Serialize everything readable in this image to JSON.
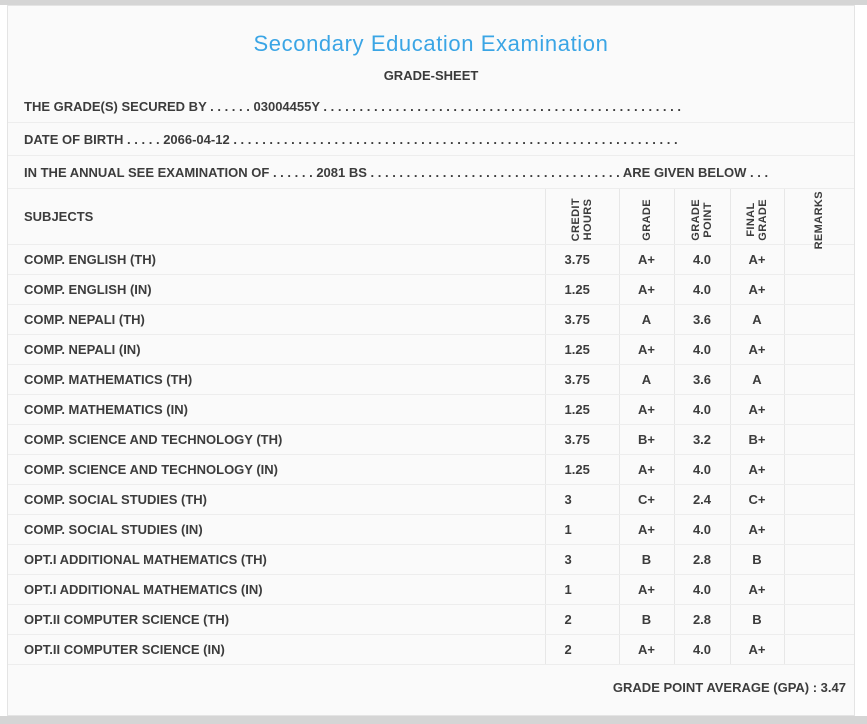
{
  "colors": {
    "title_blue": "#3aa5e5",
    "text": "#3c3c3c",
    "sheet_background": "#fafafa",
    "border_gray": "#e4e4e4"
  },
  "header": {
    "title": "Secondary Education Examination",
    "subtitle": "GRADE-SHEET"
  },
  "info_lines": [
    {
      "label": "THE GRADE(S) SECURED BY",
      "dots1": ". . . . . .",
      "value": "03004455Y",
      "dots2": ". . . . . . . . . . . . . . . . . . . . . . . . . . . . . . . . . . . . . . . . . . . . . . . . . .",
      "suffix": "",
      "dots3": ""
    },
    {
      "label": "DATE OF BIRTH",
      "dots1": ". . . . .",
      "value": "2066-04-12",
      "dots2": ". . . . . . . . . . . . . . . . . . . . . . . . . . . . . . . . . . . . . . . . . . . . . . . . . . . . . . . . . . . . . .",
      "suffix": "",
      "dots3": ""
    },
    {
      "label": "IN THE ANNUAL SEE EXAMINATION OF",
      "dots1": ". . . . . .",
      "value": "2081 BS",
      "dots2": ". . . . . . . . . . . . . . . . . . . . . . . . . . . . . . . . . . .",
      "suffix": "ARE GIVEN BELOW",
      "dots3": ". . ."
    }
  ],
  "table": {
    "headers": {
      "subjects": "SUBJECTS",
      "credit_hours": "CREDIT\nHOURS",
      "grade": "GRADE",
      "grade_point": "GRADE\nPOINT",
      "final_grade": "FINAL\nGRADE",
      "remarks": "REMARKS"
    },
    "rows": [
      {
        "subject": "COMP. ENGLISH (TH)",
        "credit": "3.75",
        "grade": "A+",
        "point": "4.0",
        "final": "A+",
        "remarks": ""
      },
      {
        "subject": "COMP. ENGLISH (IN)",
        "credit": "1.25",
        "grade": "A+",
        "point": "4.0",
        "final": "A+",
        "remarks": ""
      },
      {
        "subject": "COMP. NEPALI (TH)",
        "credit": "3.75",
        "grade": "A",
        "point": "3.6",
        "final": "A",
        "remarks": ""
      },
      {
        "subject": "COMP. NEPALI (IN)",
        "credit": "1.25",
        "grade": "A+",
        "point": "4.0",
        "final": "A+",
        "remarks": ""
      },
      {
        "subject": "COMP. MATHEMATICS (TH)",
        "credit": "3.75",
        "grade": "A",
        "point": "3.6",
        "final": "A",
        "remarks": ""
      },
      {
        "subject": "COMP. MATHEMATICS (IN)",
        "credit": "1.25",
        "grade": "A+",
        "point": "4.0",
        "final": "A+",
        "remarks": ""
      },
      {
        "subject": "COMP. SCIENCE AND TECHNOLOGY (TH)",
        "credit": "3.75",
        "grade": "B+",
        "point": "3.2",
        "final": "B+",
        "remarks": ""
      },
      {
        "subject": "COMP. SCIENCE AND TECHNOLOGY (IN)",
        "credit": "1.25",
        "grade": "A+",
        "point": "4.0",
        "final": "A+",
        "remarks": ""
      },
      {
        "subject": "COMP. SOCIAL STUDIES (TH)",
        "credit": "3",
        "grade": "C+",
        "point": "2.4",
        "final": "C+",
        "remarks": ""
      },
      {
        "subject": "COMP. SOCIAL STUDIES (IN)",
        "credit": "1",
        "grade": "A+",
        "point": "4.0",
        "final": "A+",
        "remarks": ""
      },
      {
        "subject": "OPT.I ADDITIONAL MATHEMATICS (TH)",
        "credit": "3",
        "grade": "B",
        "point": "2.8",
        "final": "B",
        "remarks": ""
      },
      {
        "subject": "OPT.I ADDITIONAL MATHEMATICS (IN)",
        "credit": "1",
        "grade": "A+",
        "point": "4.0",
        "final": "A+",
        "remarks": ""
      },
      {
        "subject": "OPT.II COMPUTER SCIENCE (TH)",
        "credit": "2",
        "grade": "B",
        "point": "2.8",
        "final": "B",
        "remarks": ""
      },
      {
        "subject": "OPT.II COMPUTER SCIENCE (IN)",
        "credit": "2",
        "grade": "A+",
        "point": "4.0",
        "final": "A+",
        "remarks": ""
      }
    ]
  },
  "footer": {
    "gpa_text": "GRADE POINT AVERAGE (GPA) : 3.47"
  }
}
